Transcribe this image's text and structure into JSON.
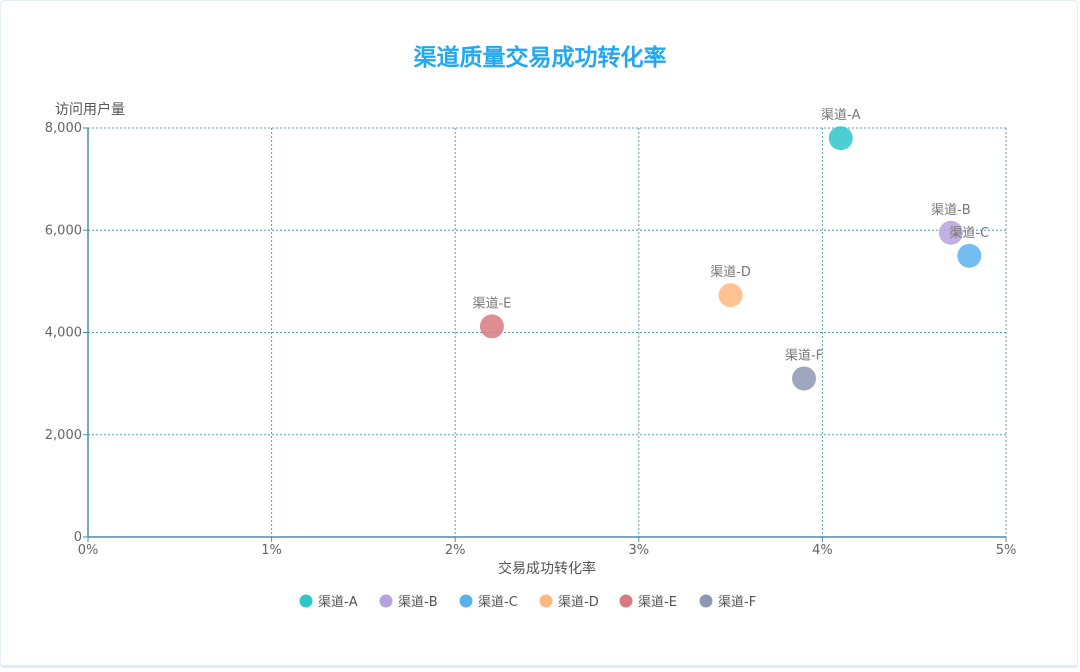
{
  "chart_data": {
    "type": "scatter",
    "title": "渠道质量交易成功转化率",
    "xlabel": "交易成功转化率",
    "ylabel": "访问用户量",
    "xlim": [
      0,
      0.05
    ],
    "ylim": [
      0,
      8000
    ],
    "x_ticks": [
      0,
      0.01,
      0.02,
      0.03,
      0.04,
      0.05
    ],
    "x_tick_labels": [
      "0%",
      "1%",
      "2%",
      "3%",
      "4%",
      "5%"
    ],
    "y_ticks": [
      0,
      2000,
      4000,
      6000,
      8000
    ],
    "y_tick_labels": [
      "0",
      "2,000",
      "4,000",
      "6,000",
      "8,000"
    ],
    "grid": true,
    "legend_position": "bottom-center",
    "series": [
      {
        "name": "渠道-A",
        "x": 0.041,
        "y": 7800,
        "color": "#2ec7c9"
      },
      {
        "name": "渠道-B",
        "x": 0.047,
        "y": 5950,
        "color": "#b6a2de"
      },
      {
        "name": "渠道-C",
        "x": 0.048,
        "y": 5500,
        "color": "#5ab1ef"
      },
      {
        "name": "渠道-D",
        "x": 0.035,
        "y": 4730,
        "color": "#ffb980"
      },
      {
        "name": "渠道-E",
        "x": 0.022,
        "y": 4120,
        "color": "#d87a80"
      },
      {
        "name": "渠道-F",
        "x": 0.039,
        "y": 3100,
        "color": "#8d98b3"
      }
    ]
  }
}
